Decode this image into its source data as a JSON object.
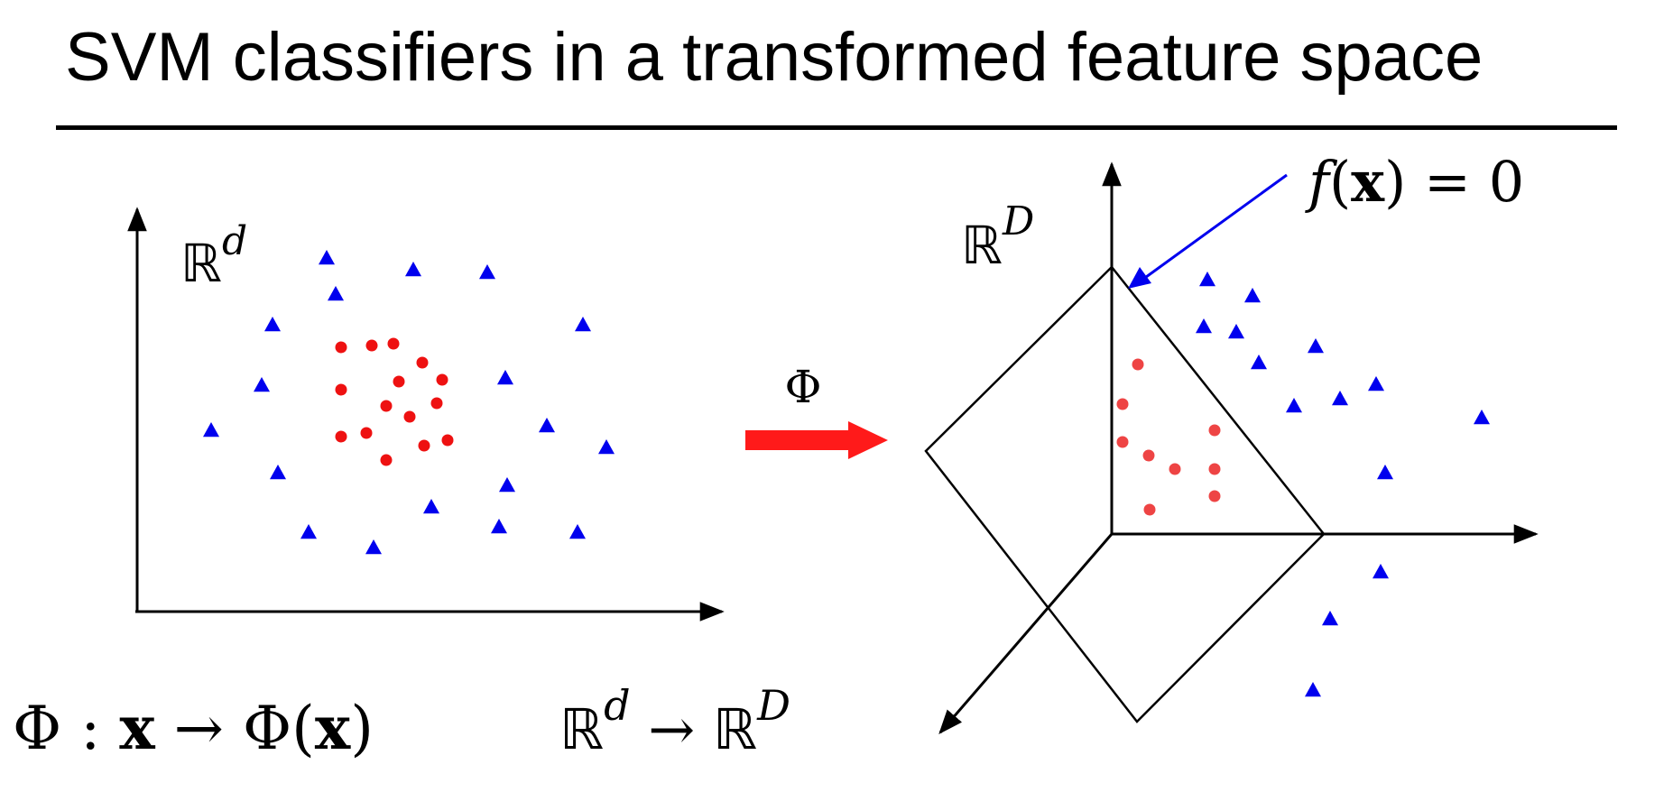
{
  "title": "SVM classifiers in a transformed feature space",
  "left_space": {
    "symbol": "ℝ",
    "exponent": "d"
  },
  "right_space": {
    "symbol": "ℝ",
    "exponent": "D"
  },
  "map_symbol": "Φ",
  "decision_boundary": {
    "function": "f",
    "argument": "x",
    "equals": "= 0"
  },
  "mapping_formula": {
    "map": "Φ",
    "separator": ":",
    "input": "x",
    "arrow": "→",
    "output_map": "Φ",
    "output_arg": "x"
  },
  "spaces_formula": {
    "from_symbol": "ℝ",
    "from_exp": "d",
    "arrow": "→",
    "to_symbol": "ℝ",
    "to_exp": "D"
  },
  "colors": {
    "positive_class": "#0000ee",
    "negative_class": "#ee1111",
    "negative_class_mapped": "#ee4444",
    "map_arrow": "#ff1a1a",
    "pointer_arrow": "#0000ee",
    "axes": "#000000"
  },
  "markers": {
    "positive_class": "triangle",
    "negative_class": "circle"
  }
}
